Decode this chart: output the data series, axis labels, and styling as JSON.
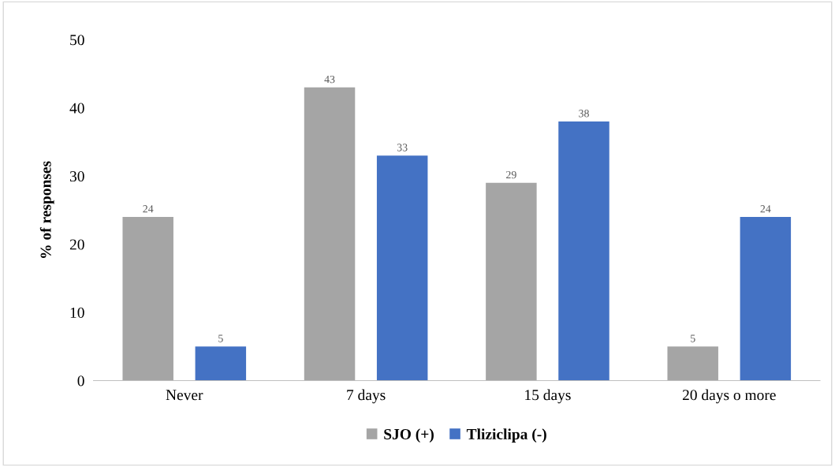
{
  "chart_data": {
    "type": "bar",
    "ylabel": "% of responses",
    "categories": [
      "Never",
      "7 days",
      "15 days",
      "20 days o more"
    ],
    "series": [
      {
        "name": "SJO (+)",
        "color": "#a5a5a5",
        "values": [
          24,
          43,
          29,
          5
        ]
      },
      {
        "name": "Tliziclipa (-)",
        "color": "#4472c4",
        "values": [
          5,
          33,
          38,
          24
        ]
      }
    ],
    "ylim": [
      0,
      50
    ],
    "yticks": [
      0,
      10,
      20,
      30,
      40,
      50
    ],
    "data_labels": true,
    "legend": "bottom",
    "grid": false
  }
}
